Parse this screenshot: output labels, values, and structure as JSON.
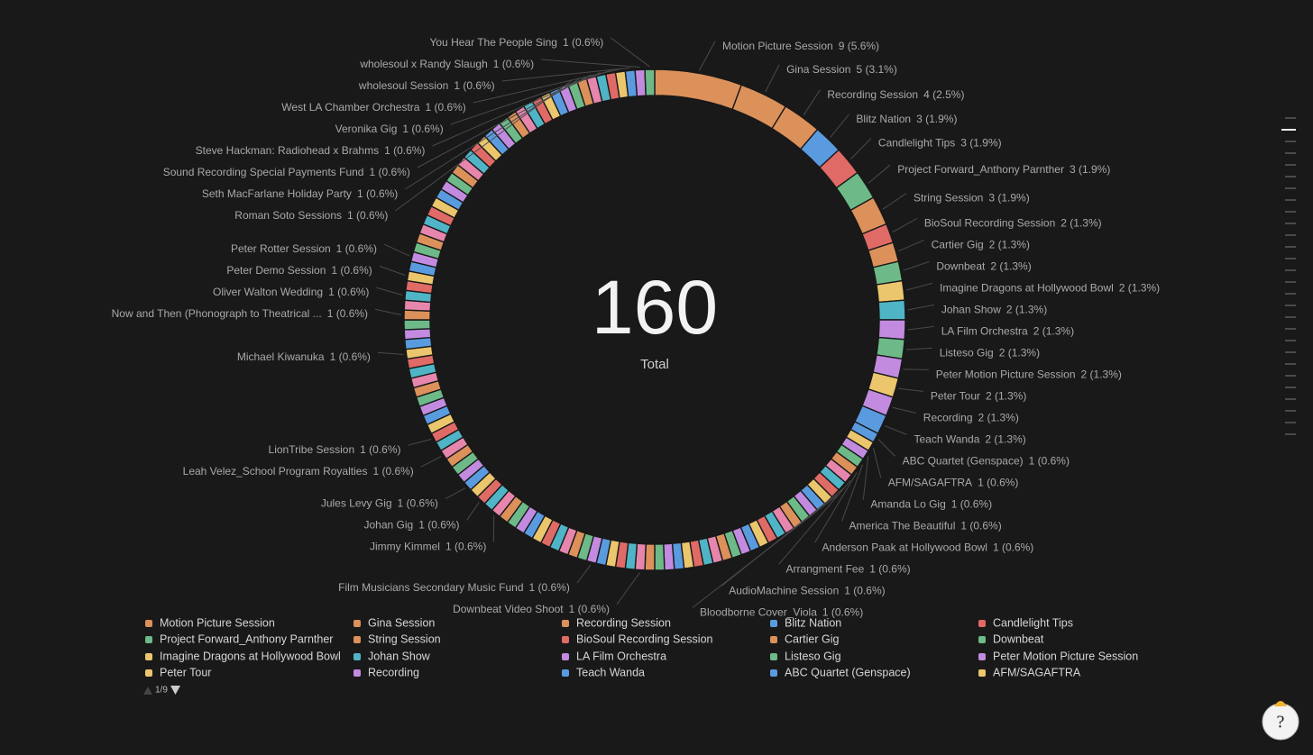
{
  "chart_data": {
    "type": "donut",
    "total": 160,
    "total_label": "Total",
    "categories": [
      "Motion Picture Session",
      "Gina Session",
      "Recording Session",
      "Blitz Nation",
      "Candlelight Tips",
      "Project Forward_Anthony Parnther",
      "String Session",
      "BioSoul Recording Session",
      "Cartier Gig",
      "Downbeat",
      "Imagine Dragons at Hollywood Bowl",
      "Johan Show",
      "LA Film Orchestra",
      "Listeso Gig",
      "Peter Motion Picture Session",
      "Peter Tour",
      "Recording",
      "Teach Wanda",
      "ABC Quartet (Genspace)",
      "AFM/SAGAFTRA",
      "Amanda Lo Gig",
      "America The Beautiful",
      "Anderson Paak at Hollywood Bowl",
      "Arrangment Fee",
      "AudioMachine Session",
      "Bloodborne Cover_Viola",
      null,
      null,
      null,
      null,
      null,
      null,
      null,
      null,
      null,
      null,
      null,
      null,
      null,
      null,
      null,
      null,
      null,
      null,
      null,
      null,
      null,
      "Downbeat Video Shoot",
      null,
      null,
      null,
      null,
      "Film Musicians Secondary Music Fund",
      null,
      null,
      null,
      null,
      null,
      null,
      null,
      null,
      null,
      null,
      "Jimmy Kimmel",
      null,
      "Johan Gig",
      null,
      "Jules Levy Gig",
      null,
      null,
      null,
      "Leah Velez_School Program Royalties",
      null,
      "LionTribe Session",
      null,
      null,
      null,
      null,
      null,
      null,
      null,
      null,
      "Michael Kiwanuka",
      null,
      null,
      null,
      "Now and Then (Phonograph to Theatrical ...",
      null,
      "Oliver Walton Wedding",
      null,
      "Peter Demo Session",
      null,
      "Peter Rotter Session",
      null,
      null,
      null,
      null,
      null,
      null,
      null,
      null,
      null,
      null,
      null,
      null,
      null,
      null,
      null,
      null,
      null,
      null,
      null,
      null,
      null,
      null,
      null,
      null,
      "Roman Soto Sessions",
      "Seth MacFarlane Holiday Party",
      "Sound Recording Special Payments Fund",
      "Steve Hackman: Radiohead x Brahms",
      "Veronika Gig",
      "West LA Chamber Orchestra",
      "wholesoul Session",
      "wholesoul x Randy Slaugh",
      "You Hear The People Sing"
    ],
    "values": [
      9,
      5,
      4,
      3,
      3,
      3,
      3,
      2,
      2,
      2,
      2,
      2,
      2,
      2,
      2,
      2,
      2,
      2,
      1,
      1,
      1,
      1,
      1,
      1,
      1,
      1,
      1,
      1,
      1,
      1,
      1,
      1,
      1,
      1,
      1,
      1,
      1,
      1,
      1,
      1,
      1,
      1,
      1,
      1,
      1,
      1,
      1,
      1,
      1,
      1,
      1,
      1,
      1,
      1,
      1,
      1,
      1,
      1,
      1,
      1,
      1,
      1,
      1,
      1,
      1,
      1,
      1,
      1,
      1,
      1,
      1,
      1,
      1,
      1,
      1,
      1,
      1,
      1,
      1,
      1,
      1,
      1,
      1,
      1,
      1,
      1,
      1,
      1,
      1,
      1,
      1,
      1,
      1,
      1,
      1,
      1,
      1,
      1,
      1,
      1,
      1,
      1,
      1,
      1,
      1,
      1,
      1,
      1,
      1,
      1,
      1,
      1,
      1,
      1,
      1,
      1,
      1,
      1,
      1,
      1,
      1,
      1,
      1,
      1,
      1,
      1
    ],
    "value_labels": [
      "9 (5.6%)",
      "5 (3.1%)",
      "4 (2.5%)",
      "3 (1.9%)",
      "3 (1.9%)",
      "3 (1.9%)",
      "3 (1.9%)",
      "2 (1.3%)",
      "2 (1.3%)",
      "2 (1.3%)",
      "2 (1.3%)",
      "2 (1.3%)",
      "2 (1.3%)",
      "2 (1.3%)",
      "2 (1.3%)",
      "2 (1.3%)",
      "2 (1.3%)",
      "2 (1.3%)",
      "1 (0.6%)",
      "1 (0.6%)",
      "1 (0.6%)",
      "1 (0.6%)",
      "1 (0.6%)",
      "1 (0.6%)",
      "1 (0.6%)",
      "1 (0.6%)",
      null,
      null,
      null,
      null,
      null,
      null,
      null,
      null,
      null,
      null,
      null,
      null,
      null,
      null,
      null,
      null,
      null,
      null,
      null,
      null,
      null,
      "1 (0.6%)",
      null,
      null,
      null,
      null,
      "1 (0.6%)",
      null,
      null,
      null,
      null,
      null,
      null,
      null,
      null,
      null,
      null,
      "1 (0.6%)",
      null,
      "1 (0.6%)",
      null,
      "1 (0.6%)",
      null,
      null,
      null,
      "1 (0.6%)",
      null,
      "1 (0.6%)",
      null,
      null,
      null,
      null,
      null,
      null,
      null,
      null,
      "1 (0.6%)",
      null,
      null,
      null,
      "1 (0.6%)",
      null,
      "1 (0.6%)",
      null,
      "1 (0.6%)",
      null,
      "1 (0.6%)",
      null,
      null,
      null,
      null,
      null,
      null,
      null,
      null,
      null,
      null,
      null,
      null,
      null,
      null,
      null,
      null,
      null,
      null,
      null,
      null,
      null,
      null,
      null,
      null,
      "1 (0.6%)",
      "1 (0.6%)",
      "1 (0.6%)",
      "1 (0.6%)",
      "1 (0.6%)",
      "1 (0.6%)",
      "1 (0.6%)",
      "1 (0.6%)",
      "1 (0.6%)"
    ],
    "colors": [
      "#dc915a",
      "#dc915a",
      "#dc915a",
      "#5a9be0",
      "#e06a66",
      "#6dba88",
      "#dc915a",
      "#e06a66",
      "#dc915a",
      "#6dba88",
      "#ebc66d",
      "#4fb5c6",
      "#c28be0",
      "#6dba88",
      "#c28be0",
      "#ebc66d",
      "#c28be0",
      "#5a9be0",
      "#5a9be0",
      "#ebc66d"
    ],
    "palette": [
      "#c28be0",
      "#6dba88",
      "#dc915a",
      "#e686ad",
      "#4fb5c6",
      "#e06a66",
      "#ebc66d",
      "#5a9be0"
    ],
    "legend_page": "1/9"
  }
}
